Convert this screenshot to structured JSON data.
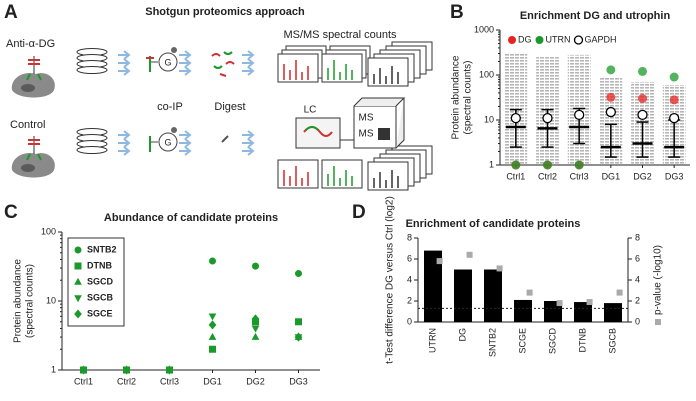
{
  "panel_labels": [
    "A",
    "B",
    "C",
    "D"
  ],
  "diagram": {
    "title": "Shotgun proteomics approach",
    "rows": [
      "Anti-α-DG",
      "Control"
    ],
    "steps": [
      "co-IP",
      "Digest"
    ],
    "spectra_title": "MS/MS spectral counts",
    "lc": "LC",
    "ms": [
      "MS",
      "MS"
    ],
    "bead": "G"
  },
  "chart_data": [
    {
      "type": "strip",
      "title": "Enrichment DG and utrophin",
      "y_label": [
        "Protein abundance",
        "(spectral counts)"
      ],
      "categories": [
        "Ctrl1",
        "Ctrl2",
        "Ctrl3",
        "DG1",
        "DG2",
        "DG3"
      ],
      "log_y": true,
      "ylim": [
        1,
        1000
      ],
      "yticks": [
        1,
        10,
        100,
        1000
      ],
      "all_proteins": {
        "color": "#b5b5b5",
        "low": [
          1,
          1,
          1,
          1,
          1,
          1
        ],
        "high": [
          300,
          250,
          280,
          90,
          70,
          60
        ]
      },
      "summary": {
        "color": "#000000",
        "center": [
          7,
          6.5,
          7,
          2.5,
          3,
          2.5
        ],
        "low": [
          2.5,
          2.5,
          3,
          1.5,
          1.5,
          1.5
        ],
        "high": [
          17,
          17,
          18,
          8,
          9,
          10
        ]
      },
      "series": [
        {
          "name": "DG",
          "color": "#e8231f",
          "marker": "circle",
          "values": [
            1,
            1,
            1,
            32,
            30,
            28
          ]
        },
        {
          "name": "UTRN",
          "color": "#1a9a2a",
          "marker": "circle",
          "values": [
            1,
            1,
            1,
            130,
            120,
            90
          ]
        },
        {
          "name": "GAPDH",
          "color": "#000000",
          "marker": "open-circle",
          "values": [
            11,
            11,
            13,
            15,
            13,
            11
          ]
        }
      ],
      "legend": "top"
    },
    {
      "type": "strip",
      "title": "Abundance of candidate proteins",
      "y_label": [
        "Protein abundance",
        "(spectral counts)"
      ],
      "categories": [
        "Ctrl1",
        "Ctrl2",
        "Ctrl3",
        "DG1",
        "DG2",
        "DG3"
      ],
      "log_y": true,
      "ylim": [
        1,
        100
      ],
      "yticks": [
        1,
        10,
        100
      ],
      "series": [
        {
          "name": "SNTB2",
          "color": "#1a9a2a",
          "marker": "circle",
          "values": [
            1,
            1,
            1,
            38,
            32,
            25
          ]
        },
        {
          "name": "DTNB",
          "color": "#1a9a2a",
          "marker": "square",
          "values": [
            1,
            1,
            1,
            2,
            5,
            5
          ]
        },
        {
          "name": "SGCD",
          "color": "#1a9a2a",
          "marker": "triangle-up",
          "values": [
            1,
            1,
            1,
            3,
            3,
            3
          ]
        },
        {
          "name": "SGCB",
          "color": "#1a9a2a",
          "marker": "triangle-down",
          "values": [
            1,
            1,
            1,
            6,
            4,
            3
          ]
        },
        {
          "name": "SGCE",
          "color": "#1a9a2a",
          "marker": "diamond",
          "values": [
            1,
            1,
            1,
            4.5,
            5.5,
            3
          ]
        }
      ],
      "legend": "top-left"
    },
    {
      "type": "bar",
      "title": "Enrichment of candidate proteins",
      "y_label": [
        "t-Test difference DG versus Ctrl (log2)"
      ],
      "y2_label": "p-value (-log10)",
      "categories": [
        "UTRN",
        "DG",
        "SNTB2",
        "SCGE",
        "SGCD",
        "DTNB",
        "SGCB"
      ],
      "ylim": [
        0,
        8
      ],
      "yticks": [
        0,
        2,
        4,
        6,
        8
      ],
      "y2lim": [
        0,
        8
      ],
      "y2ticks": [
        0,
        2,
        4,
        6,
        8
      ],
      "series": [
        {
          "color": "#000000",
          "values": [
            6.8,
            5.0,
            5.0,
            2.1,
            2.0,
            1.9,
            1.8
          ]
        },
        {
          "color": "#aaaaaa",
          "axis": "y2",
          "marker": "square",
          "values": [
            5.8,
            6.4,
            5.1,
            2.8,
            1.8,
            1.9,
            2.8
          ]
        }
      ],
      "threshold": {
        "value": 1.3,
        "axis": "y2"
      }
    }
  ]
}
